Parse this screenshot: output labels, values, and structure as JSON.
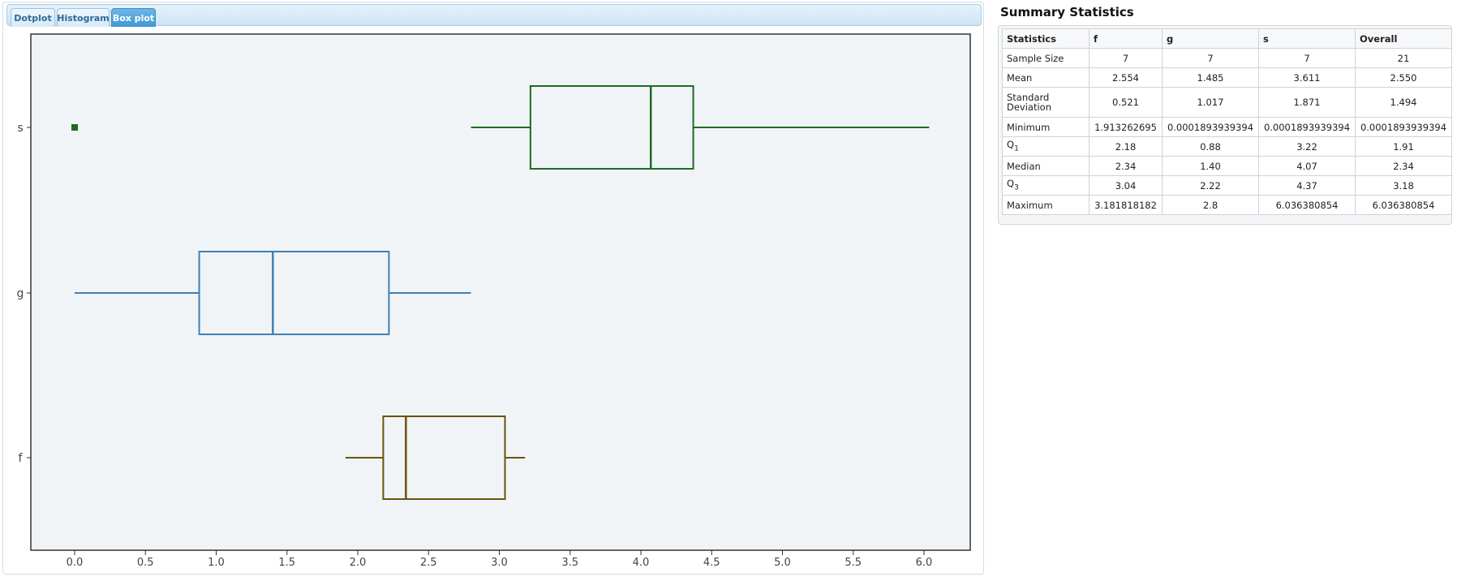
{
  "tabs": [
    {
      "label": "Dotplot",
      "active": false
    },
    {
      "label": "Histogram",
      "active": false
    },
    {
      "label": "Box plot",
      "active": true
    }
  ],
  "chart_data": {
    "type": "boxplot",
    "orientation": "horizontal",
    "xlim": [
      -0.3,
      6.3
    ],
    "xticks": [
      0.0,
      0.5,
      1.0,
      1.5,
      2.0,
      2.5,
      3.0,
      3.5,
      4.0,
      4.5,
      5.0,
      5.5,
      6.0
    ],
    "xtick_labels": [
      "0.0",
      "0.5",
      "1.0",
      "1.5",
      "2.0",
      "2.5",
      "3.0",
      "3.5",
      "4.0",
      "4.5",
      "5.0",
      "5.5",
      "6.0"
    ],
    "categories": [
      "s",
      "g",
      "f"
    ],
    "boxes": [
      {
        "name": "s",
        "whisker_low": 2.8,
        "q1": 3.22,
        "median": 4.07,
        "q3": 4.37,
        "whisker_high": 6.036380854,
        "outliers": [
          0.0001893939394
        ],
        "color": "#1e6b22"
      },
      {
        "name": "g",
        "whisker_low": 0.0001893939394,
        "q1": 0.88,
        "median": 1.4,
        "q3": 2.22,
        "whisker_high": 2.8,
        "outliers": [],
        "color": "#3f7fb5"
      },
      {
        "name": "f",
        "whisker_low": 1.913262695,
        "q1": 2.18,
        "median": 2.34,
        "q3": 3.04,
        "whisker_high": 3.181818182,
        "outliers": [],
        "color": "#6b5210"
      }
    ],
    "grid": false
  },
  "stats": {
    "title": "Summary Statistics",
    "headers": [
      "Statistics",
      "f",
      "g",
      "s",
      "Overall"
    ],
    "rows": [
      {
        "label": "Sample Size",
        "values": [
          "7",
          "7",
          "7",
          "21"
        ]
      },
      {
        "label": "Mean",
        "values": [
          "2.554",
          "1.485",
          "3.611",
          "2.550"
        ]
      },
      {
        "label": "Standard Deviation",
        "values": [
          "0.521",
          "1.017",
          "1.871",
          "1.494"
        ]
      },
      {
        "label": "Minimum",
        "values": [
          "1.913262695",
          "0.0001893939394",
          "0.0001893939394",
          "0.0001893939394"
        ]
      },
      {
        "label": "Q",
        "sub": "1",
        "values": [
          "2.18",
          "0.88",
          "3.22",
          "1.91"
        ]
      },
      {
        "label": "Median",
        "values": [
          "2.34",
          "1.40",
          "4.07",
          "2.34"
        ]
      },
      {
        "label": "Q",
        "sub": "3",
        "values": [
          "3.04",
          "2.22",
          "4.37",
          "3.18"
        ]
      },
      {
        "label": "Maximum",
        "values": [
          "3.181818182",
          "2.8",
          "6.036380854",
          "6.036380854"
        ]
      }
    ]
  }
}
